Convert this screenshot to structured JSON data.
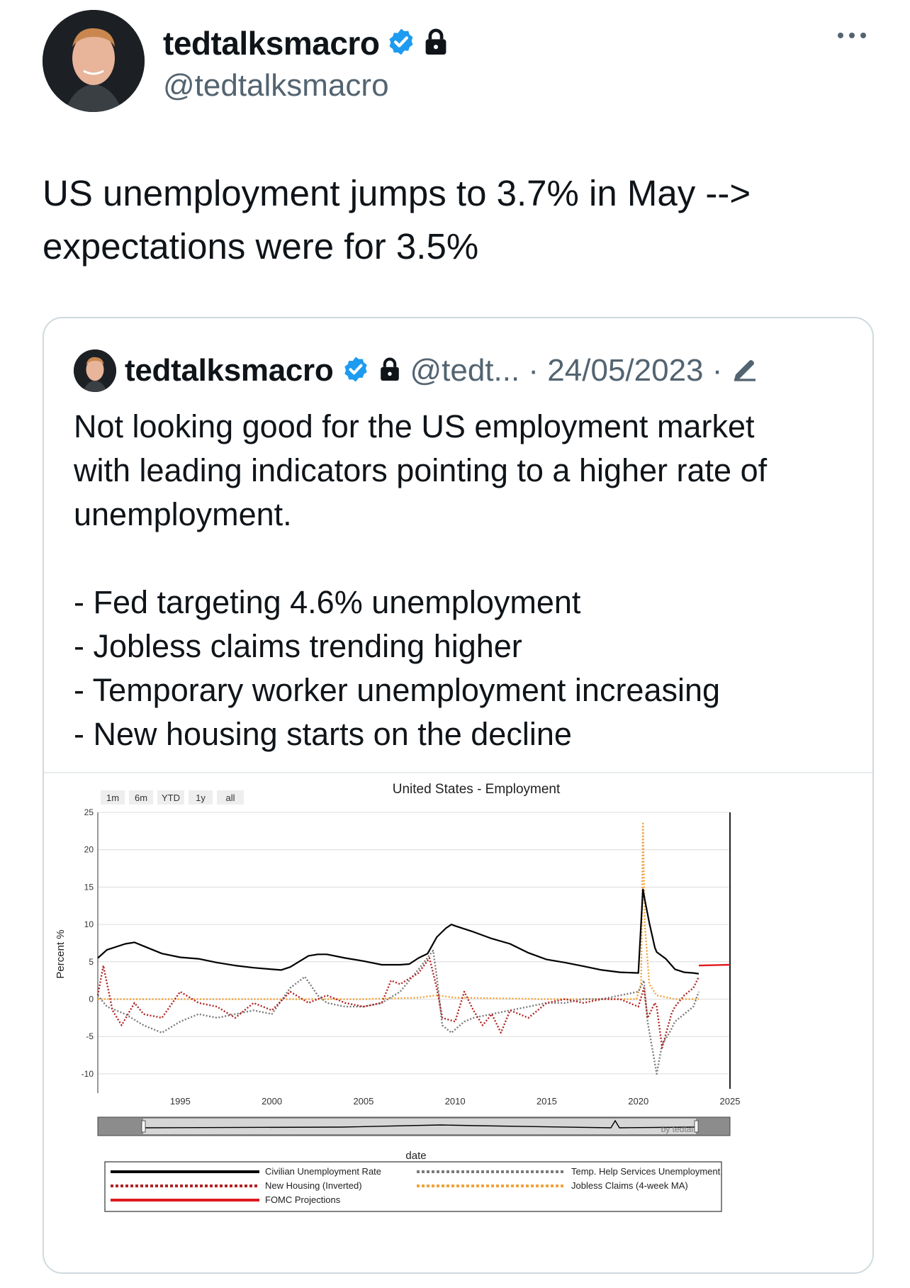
{
  "tweet": {
    "author_name": "tedtalksmacro",
    "author_handle": "@tedtalksmacro",
    "text_line1": "US unemployment jumps to 3.7% in May -->",
    "text_line2": "expectations were for 3.5%"
  },
  "quoted_tweet": {
    "author_name": "tedtalksmacro",
    "meta": "@tedt... · 24/05/2023 ·",
    "lines": [
      "Not looking good for the US employment market",
      "with leading indicators pointing to a higher rate of",
      "unemployment."
    ],
    "bullets": [
      "- Fed targeting 4.6% unemployment",
      "- Jobless claims trending higher",
      "- Temporary worker unemployment increasing",
      "- New housing starts on the decline"
    ]
  },
  "colors": {
    "verified": "#1d9bf0",
    "civilian": "#000000",
    "housing": "#b22222",
    "fomc": "#e0191f",
    "temp_help": "#7a7a7a",
    "jobless": "#f2a23a"
  },
  "chart_data": {
    "type": "line",
    "title": "United States - Employment",
    "xlabel": "date",
    "ylabel": "Percent %",
    "range_buttons": [
      "1m",
      "6m",
      "YTD",
      "1y",
      "all"
    ],
    "x_ticks": [
      "1995",
      "2000",
      "2005",
      "2010",
      "2015",
      "2020",
      "2025"
    ],
    "y_ticks": [
      "25",
      "20",
      "15",
      "10",
      "5",
      "0",
      "-5",
      "-10"
    ],
    "xlim": [
      1990.5,
      2025
    ],
    "ylim": [
      -12,
      25
    ],
    "watermark": "by tedtal",
    "series": [
      {
        "name": "Civilian Unemployment Rate",
        "key": "civilian",
        "style": "solid",
        "x": [
          1990.5,
          1991,
          1992,
          1992.5,
          1993,
          1994,
          1995,
          1996,
          1997,
          1998,
          1999,
          2000,
          2000.5,
          2001,
          2002,
          2002.5,
          2003,
          2004,
          2005,
          2006,
          2007,
          2007.5,
          2008,
          2008.5,
          2009,
          2009.5,
          2009.8,
          2010,
          2011,
          2012,
          2013,
          2014,
          2015,
          2016,
          2017,
          2018,
          2019,
          2020.0,
          2020.25,
          2020.35,
          2020.6,
          2020.9,
          2021,
          2021.5,
          2022,
          2022.5,
          2023,
          2023.3
        ],
        "y": [
          5.5,
          6.6,
          7.4,
          7.6,
          7.1,
          6.1,
          5.6,
          5.4,
          4.9,
          4.5,
          4.2,
          4.0,
          3.9,
          4.3,
          5.8,
          6.0,
          6.0,
          5.5,
          5.1,
          4.6,
          4.6,
          4.7,
          5.5,
          6.1,
          8.3,
          9.5,
          10.0,
          9.8,
          9.0,
          8.1,
          7.4,
          6.2,
          5.3,
          4.9,
          4.4,
          3.9,
          3.6,
          3.5,
          14.7,
          13.3,
          10.2,
          6.9,
          6.3,
          5.4,
          4.0,
          3.6,
          3.5,
          3.4
        ]
      },
      {
        "name": "Temp. Help Services Unemployment",
        "key": "temp_help",
        "style": "dotted",
        "x": [
          1990.5,
          1991,
          1992,
          1993,
          1994,
          1995,
          1996,
          1997,
          1998,
          1999,
          2000,
          2001,
          2001.8,
          2002.5,
          2003,
          2004,
          2005,
          2006,
          2007,
          2008,
          2008.8,
          2009,
          2009.3,
          2009.8,
          2010.5,
          2011,
          2012,
          2013,
          2014,
          2015,
          2016,
          2017,
          2018,
          2019,
          2020.0,
          2020.3,
          2020.5,
          2021,
          2021.3,
          2021.7,
          2022,
          2022.5,
          2023,
          2023.3
        ],
        "y": [
          0.5,
          -1.0,
          -2.0,
          -3.5,
          -4.5,
          -3.0,
          -2.0,
          -2.5,
          -2.0,
          -1.5,
          -2.0,
          1.5,
          3.0,
          0.5,
          -0.5,
          -1.0,
          -1.0,
          -0.5,
          1.0,
          4.0,
          6.5,
          3.0,
          -3.5,
          -4.5,
          -3.0,
          -2.5,
          -2.0,
          -1.5,
          -1.0,
          -0.5,
          -0.5,
          0,
          0,
          0.5,
          1.0,
          2.5,
          -3.0,
          -10.0,
          -6.0,
          -4.5,
          -3.0,
          -2.0,
          -1.0,
          1.0
        ]
      },
      {
        "name": "New Housing (Inverted)",
        "key": "housing",
        "style": "dotted",
        "x": [
          1990.5,
          1990.8,
          1991.3,
          1991.8,
          1992.5,
          1993,
          1994,
          1995,
          1996,
          1997,
          1998,
          1999,
          2000,
          2001,
          2002,
          2003,
          2004,
          2005,
          2006,
          2006.5,
          2007,
          2008,
          2008.6,
          2009,
          2009.3,
          2010,
          2010.5,
          2011,
          2011.5,
          2012,
          2012.5,
          2013,
          2014,
          2015,
          2016,
          2017,
          2018,
          2019,
          2020.0,
          2020.3,
          2020.5,
          2020.9,
          2021,
          2021.3,
          2021.8,
          2022,
          2022.5,
          2023,
          2023.3
        ],
        "y": [
          0.5,
          4.5,
          -1.5,
          -3.5,
          -0.5,
          -2.0,
          -2.5,
          1.0,
          -0.5,
          -1.0,
          -2.5,
          -0.5,
          -1.5,
          1.0,
          -0.5,
          0.5,
          -0.5,
          -1.0,
          -0.5,
          2.5,
          2.0,
          3.5,
          5.5,
          1.5,
          -2.5,
          -3.0,
          1.0,
          -1.5,
          -3.5,
          -2.0,
          -4.5,
          -1.5,
          -2.5,
          -0.5,
          0,
          -0.5,
          0,
          0,
          -1.0,
          1.5,
          -2.5,
          -0.5,
          -1.0,
          -6.5,
          -2.0,
          -1.0,
          0.5,
          1.5,
          3.0
        ]
      },
      {
        "name": "Jobless Claims (4-week MA)",
        "key": "jobless",
        "style": "dotted",
        "x": [
          1990.5,
          1995,
          2000,
          2005,
          2008,
          2009,
          2010,
          2015,
          2019.9,
          2020.15,
          2020.25,
          2020.35,
          2020.6,
          2021,
          2022,
          2023.3
        ],
        "y": [
          0,
          0,
          0,
          0,
          0.2,
          0.5,
          0.2,
          0,
          0,
          2.0,
          23.5,
          10.0,
          2.0,
          0.5,
          0,
          0
        ]
      },
      {
        "name": "FOMC Projections",
        "key": "fomc",
        "style": "solid",
        "x": [
          2023.3,
          2025
        ],
        "y": [
          4.5,
          4.6
        ]
      }
    ]
  }
}
